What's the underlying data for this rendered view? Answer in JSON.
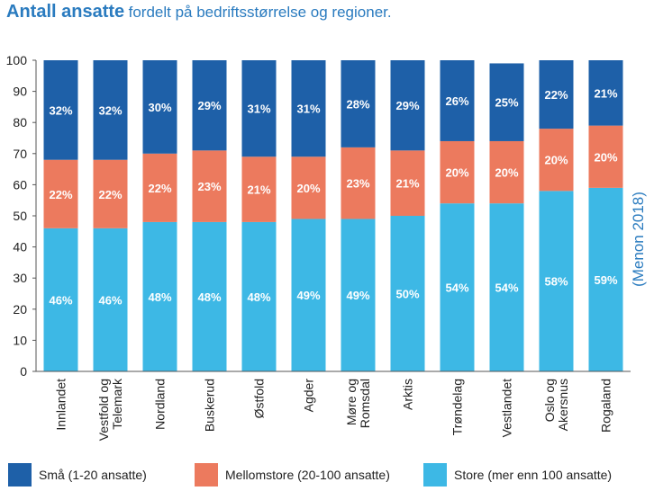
{
  "title": {
    "bold": "Antall ansatte",
    "rest": "fordelt på bedriftsstørrelse og regioner."
  },
  "source": "(Menon 2018)",
  "chart_data": {
    "type": "bar",
    "stacked": true,
    "categories": [
      [
        "Innlandet"
      ],
      [
        "Vestfold og",
        "Telemark"
      ],
      [
        "Nordland"
      ],
      [
        "Buskerud"
      ],
      [
        "Østfold"
      ],
      [
        "Agder"
      ],
      [
        "Møre og",
        "Romsdal"
      ],
      [
        "Arktis"
      ],
      [
        "Trøndelag"
      ],
      [
        "Vestlandet"
      ],
      [
        "Oslo og",
        "Akersnus"
      ],
      [
        "Rogaland"
      ]
    ],
    "series": [
      {
        "name": "Store (mer enn 100 ansatte)",
        "color": "#3db8e5",
        "values": [
          46,
          46,
          48,
          48,
          48,
          49,
          49,
          50,
          54,
          54,
          58,
          59
        ],
        "labels": [
          "46%",
          "46%",
          "48%",
          "48%",
          "48%",
          "49%",
          "49%",
          "50%",
          "54%",
          "54%",
          "58%",
          "59%"
        ]
      },
      {
        "name": "Mellomstore (20-100 ansatte)",
        "color": "#ec7a5e",
        "values": [
          22,
          22,
          22,
          23,
          21,
          20,
          23,
          21,
          20,
          20,
          20,
          20
        ],
        "labels": [
          "22%",
          "22%",
          "22%",
          "23%",
          "21%",
          "20%",
          "23%",
          "21%",
          "20%",
          "20%",
          "20%",
          "20%"
        ]
      },
      {
        "name": "Små (1-20 ansatte)",
        "color": "#1e60a8",
        "values": [
          32,
          32,
          30,
          29,
          31,
          31,
          28,
          29,
          26,
          25,
          22,
          21
        ],
        "labels": [
          "32%",
          "32%",
          "30%",
          "29%",
          "31%",
          "31%",
          "28%",
          "29%",
          "26%",
          "25%",
          "22%",
          "21%"
        ]
      }
    ],
    "ylim": [
      0,
      100
    ],
    "yticks": [
      0,
      10,
      20,
      30,
      40,
      50,
      60,
      70,
      80,
      90,
      100
    ],
    "legend": [
      {
        "name": "Små (1-20 ansatte)",
        "color": "#1e60a8"
      },
      {
        "name": "Mellomstore (20-100 ansatte)",
        "color": "#ec7a5e"
      },
      {
        "name": "Store (mer enn 100 ansatte)",
        "color": "#3db8e5"
      }
    ],
    "legend_position": "bottom",
    "grid": false
  }
}
